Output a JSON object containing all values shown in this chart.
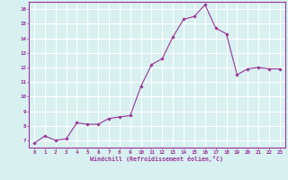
{
  "x": [
    0,
    1,
    2,
    3,
    4,
    5,
    6,
    7,
    8,
    9,
    10,
    11,
    12,
    13,
    14,
    15,
    16,
    17,
    18,
    19,
    20,
    21,
    22,
    23
  ],
  "y": [
    6.8,
    7.3,
    7.0,
    7.1,
    8.2,
    8.1,
    8.1,
    8.5,
    8.6,
    8.7,
    10.7,
    12.2,
    12.6,
    14.1,
    15.3,
    15.5,
    16.3,
    14.7,
    14.3,
    11.5,
    11.9,
    12.0,
    11.9,
    11.9
  ],
  "line_color": "#993399",
  "marker_color": "#993399",
  "bg_color": "#d8f0f0",
  "grid_color": "#ffffff",
  "tick_label_color": "#993399",
  "xlabel": "Windchill (Refroidissement éolien,°C)",
  "xlim": [
    -0.5,
    23.5
  ],
  "ylim": [
    6.5,
    16.5
  ],
  "yticks": [
    7,
    8,
    9,
    10,
    11,
    12,
    13,
    14,
    15,
    16
  ],
  "xticks": [
    0,
    1,
    2,
    3,
    4,
    5,
    6,
    7,
    8,
    9,
    10,
    11,
    12,
    13,
    14,
    15,
    16,
    17,
    18,
    19,
    20,
    21,
    22,
    23
  ]
}
